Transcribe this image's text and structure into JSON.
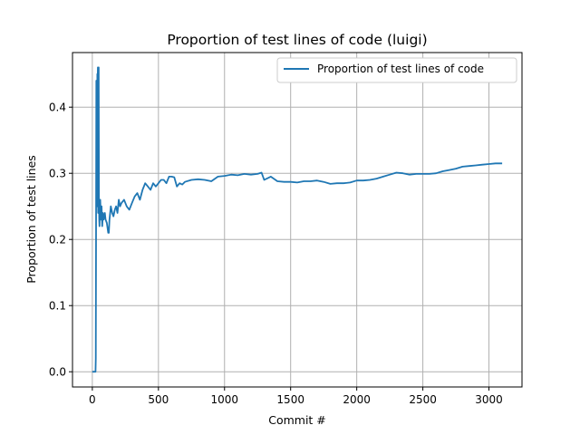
{
  "chart_data": {
    "type": "line",
    "title": "Proportion of test lines of code (luigi)",
    "xlabel": "Commit #",
    "ylabel": "Proportion of test lines",
    "xlim": [
      -150,
      3250
    ],
    "ylim": [
      -0.023,
      0.4825
    ],
    "xticks": [
      0,
      500,
      1000,
      1500,
      2000,
      2500,
      3000
    ],
    "yticks": [
      0.0,
      0.1,
      0.2,
      0.3,
      0.4
    ],
    "xtick_labels": [
      "0",
      "500",
      "1000",
      "1500",
      "2000",
      "2500",
      "3000"
    ],
    "ytick_labels": [
      "0.0",
      "0.1",
      "0.2",
      "0.3",
      "0.4"
    ],
    "grid": true,
    "legend_position": "upper right",
    "series": [
      {
        "name": "Proportion of test lines of code",
        "color": "#1f77b4",
        "x": [
          0,
          10,
          20,
          24,
          26,
          28,
          30,
          32,
          34,
          36,
          38,
          40,
          42,
          44,
          46,
          48,
          50,
          52,
          54,
          56,
          58,
          60,
          65,
          70,
          75,
          80,
          85,
          90,
          95,
          100,
          110,
          120,
          125,
          130,
          140,
          150,
          160,
          170,
          180,
          190,
          200,
          210,
          220,
          240,
          260,
          280,
          300,
          320,
          340,
          360,
          380,
          400,
          420,
          440,
          460,
          480,
          500,
          520,
          540,
          560,
          580,
          600,
          620,
          640,
          660,
          680,
          700,
          750,
          800,
          850,
          900,
          950,
          1000,
          1050,
          1100,
          1150,
          1200,
          1250,
          1280,
          1300,
          1350,
          1400,
          1450,
          1500,
          1550,
          1600,
          1650,
          1700,
          1750,
          1800,
          1850,
          1900,
          1950,
          2000,
          2050,
          2100,
          2150,
          2200,
          2250,
          2300,
          2350,
          2400,
          2450,
          2500,
          2550,
          2600,
          2650,
          2700,
          2750,
          2800,
          2850,
          2900,
          2950,
          3000,
          3050,
          3100
        ],
        "y": [
          0.0,
          0.0,
          0.0,
          0.0,
          0.02,
          0.21,
          0.44,
          0.3,
          0.42,
          0.25,
          0.45,
          0.43,
          0.46,
          0.24,
          0.45,
          0.46,
          0.26,
          0.23,
          0.22,
          0.25,
          0.24,
          0.26,
          0.23,
          0.25,
          0.22,
          0.24,
          0.23,
          0.235,
          0.24,
          0.23,
          0.225,
          0.21,
          0.21,
          0.23,
          0.25,
          0.24,
          0.235,
          0.245,
          0.25,
          0.24,
          0.26,
          0.25,
          0.255,
          0.26,
          0.25,
          0.245,
          0.255,
          0.265,
          0.27,
          0.26,
          0.275,
          0.285,
          0.28,
          0.275,
          0.285,
          0.28,
          0.285,
          0.29,
          0.29,
          0.285,
          0.295,
          0.295,
          0.294,
          0.28,
          0.285,
          0.283,
          0.287,
          0.29,
          0.291,
          0.29,
          0.288,
          0.295,
          0.296,
          0.298,
          0.297,
          0.299,
          0.298,
          0.299,
          0.301,
          0.29,
          0.295,
          0.288,
          0.287,
          0.287,
          0.286,
          0.288,
          0.288,
          0.289,
          0.287,
          0.284,
          0.285,
          0.285,
          0.286,
          0.289,
          0.289,
          0.29,
          0.292,
          0.295,
          0.298,
          0.301,
          0.3,
          0.298,
          0.299,
          0.299,
          0.299,
          0.3,
          0.303,
          0.305,
          0.307,
          0.31,
          0.311,
          0.312,
          0.313,
          0.314,
          0.315,
          0.315
        ]
      }
    ]
  }
}
